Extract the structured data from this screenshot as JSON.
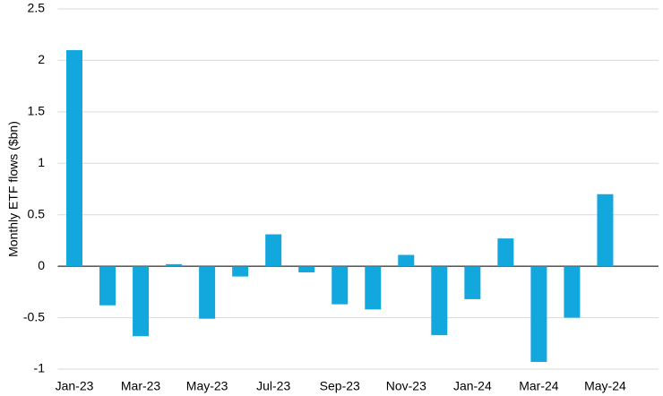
{
  "chart_data": {
    "type": "bar",
    "y_label": "Monthly ETF flows ($bn)",
    "categories": [
      "Jan-23",
      null,
      "Mar-23",
      null,
      "May-23",
      null,
      "Jul-23",
      null,
      "Sep-23",
      null,
      "Nov-23",
      null,
      "Jan-24",
      null,
      "Mar-24",
      null,
      "May-24",
      null
    ],
    "values": [
      2.1,
      -0.38,
      -0.68,
      0.02,
      -0.51,
      -0.1,
      0.31,
      -0.06,
      -0.37,
      -0.42,
      0.11,
      -0.67,
      -0.32,
      0.27,
      -0.93,
      -0.5,
      0.7,
      null
    ],
    "color": "#12a7dd",
    "ylim": [
      -1,
      2.5
    ],
    "yticks": [
      -1,
      -0.5,
      0,
      0.5,
      1,
      1.5,
      2,
      2.5
    ],
    "grid": true
  }
}
